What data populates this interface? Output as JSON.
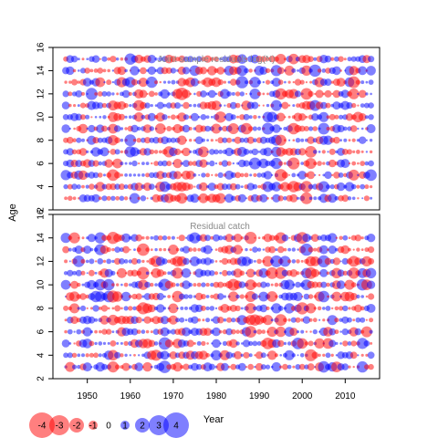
{
  "chart_data": [
    {
      "type": "scatter",
      "title": "Joint sample residuals log(N)",
      "xlabel": "Year",
      "ylabel": "Age",
      "xlim": [
        1942,
        2018
      ],
      "ylim": [
        2,
        16
      ],
      "x_ticks": [
        "1950",
        "1960",
        "1970",
        "1980",
        "1990",
        "2000",
        "2010"
      ],
      "y_ticks": [
        "2",
        "4",
        "6",
        "8",
        "10",
        "12",
        "14",
        "16"
      ],
      "years": [
        1945,
        2016
      ],
      "ages": [
        3,
        15
      ],
      "encoding": "bubble size = |residual|, red = negative, blue = positive",
      "colors": {
        "negative": "#ff0000",
        "positive": "#0000ff"
      }
    },
    {
      "type": "scatter",
      "title": "Residual catch",
      "xlabel": "Year",
      "ylabel": "Age",
      "xlim": [
        1942,
        2018
      ],
      "ylim": [
        2,
        16
      ],
      "x_ticks": [
        "1950",
        "1960",
        "1970",
        "1980",
        "1990",
        "2000",
        "2010"
      ],
      "y_ticks": [
        "2",
        "4",
        "6",
        "8",
        "10",
        "12",
        "14",
        "16"
      ],
      "years": [
        1945,
        2016
      ],
      "ages": [
        3,
        14
      ],
      "encoding": "bubble size = |residual|, red = negative, blue = positive",
      "colors": {
        "negative": "#ff0000",
        "positive": "#0000ff"
      }
    }
  ],
  "legend": {
    "values": [
      -4,
      -3,
      -2,
      -1,
      0,
      1,
      2,
      3,
      4
    ],
    "labels": [
      "-4",
      "-3",
      "-2",
      "-1",
      "0",
      "1",
      "2",
      "3",
      "4"
    ]
  },
  "axes": {
    "y_label": "Age",
    "x_label": "Year"
  }
}
